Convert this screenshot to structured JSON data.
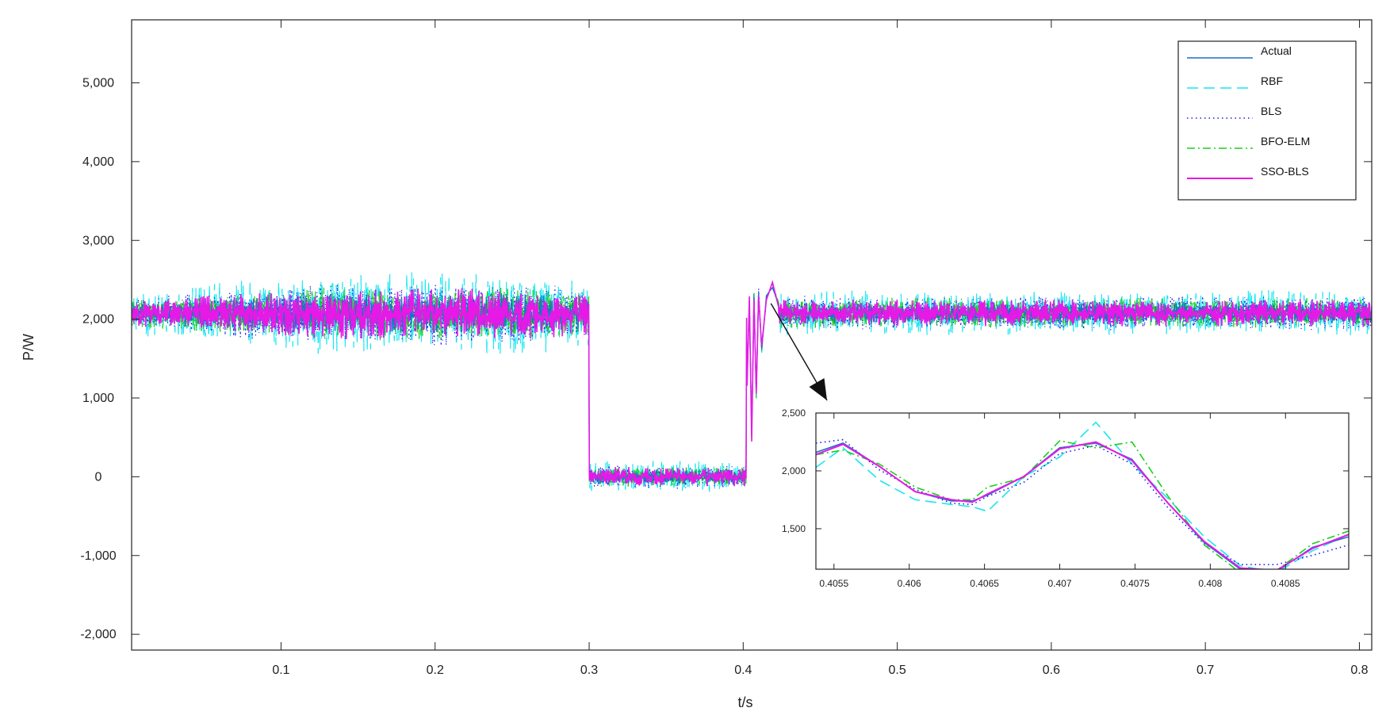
{
  "chart_data": {
    "type": "line",
    "title": "",
    "xlabel": "t/s",
    "ylabel": "P/W",
    "xlim": [
      0.003,
      0.808
    ],
    "ylim": [
      -2200,
      5800
    ],
    "xticks": [
      0.1,
      0.2,
      0.3,
      0.4,
      0.5,
      0.6,
      0.7,
      0.8
    ],
    "xtick_labels": [
      "0.1",
      "0.2",
      "0.3",
      "0.4",
      "0.5",
      "0.6",
      "0.7",
      "0.8"
    ],
    "yticks": [
      -2000,
      -1000,
      0,
      1000,
      2000,
      3000,
      4000,
      5000
    ],
    "ytick_labels": [
      "-2,000",
      "-1,000",
      "0",
      "1,000",
      "2,000",
      "3,000",
      "4,000",
      "5,000"
    ],
    "grid": false,
    "legend_position": "top-right",
    "profile": {
      "segments": [
        {
          "t_start": 0.003,
          "t_end": 0.3,
          "level": 2070
        },
        {
          "t_start": 0.3,
          "t_end": 0.402,
          "level": 0
        },
        {
          "t_start": 0.402,
          "t_end": 0.808,
          "level": 2080
        }
      ],
      "noise_amplitude": {
        "Actual": 110,
        "RBF": 230,
        "BLS": 170,
        "BFO-ELM": 150,
        "SSO-BLS": 140
      },
      "transient_points": [
        {
          "t": 0.4025,
          "value": 1200
        },
        {
          "t": 0.404,
          "value": 2250
        },
        {
          "t": 0.4055,
          "value": 500
        },
        {
          "t": 0.407,
          "value": 2300
        },
        {
          "t": 0.4085,
          "value": 1050
        },
        {
          "t": 0.41,
          "value": 2350
        },
        {
          "t": 0.412,
          "value": 1600
        },
        {
          "t": 0.415,
          "value": 2300
        },
        {
          "t": 0.419,
          "value": 2420
        },
        {
          "t": 0.423,
          "value": 2200
        }
      ]
    },
    "series": [
      {
        "name": "Actual",
        "color": "#1f6fc4",
        "dash": "solid"
      },
      {
        "name": "RBF",
        "color": "#19e6f0",
        "dash": "dashed"
      },
      {
        "name": "BLS",
        "color": "#1a1ae6",
        "dash": "dotted"
      },
      {
        "name": "BFO-ELM",
        "color": "#19d019",
        "dash": "dashdot"
      },
      {
        "name": "SSO-BLS",
        "color": "#e619e6",
        "dash": "solid"
      }
    ],
    "annotation": {
      "type": "arrow",
      "from": {
        "t": 0.418,
        "value": 2200
      },
      "to": "inset"
    },
    "inset": {
      "xlim": [
        0.40538,
        0.40892
      ],
      "ylim": [
        1150,
        2500
      ],
      "xticks": [
        0.4055,
        0.406,
        0.4065,
        0.407,
        0.4075,
        0.408,
        0.4085
      ],
      "xtick_labels": [
        "0.4055",
        "0.406",
        "0.4065",
        "0.407",
        "0.4075",
        "0.408",
        "0.4085"
      ],
      "yticks": [
        1500,
        2000,
        2500
      ],
      "ytick_labels": [
        "1,500",
        "2,000",
        "2,500"
      ],
      "x": [
        0.40538,
        0.40556,
        0.4058,
        0.40604,
        0.40628,
        0.40642,
        0.40652,
        0.40676,
        0.407,
        0.40724,
        0.40748,
        0.40772,
        0.40796,
        0.4082,
        0.40844,
        0.40868,
        0.40892
      ],
      "series": [
        {
          "name": "Actual",
          "values": [
            2160,
            2240,
            2040,
            1820,
            1740,
            1740,
            1790,
            1950,
            2200,
            2240,
            2100,
            1720,
            1380,
            1150,
            1130,
            1340,
            1430
          ]
        },
        {
          "name": "RBF",
          "values": [
            2030,
            2200,
            1920,
            1750,
            1710,
            1690,
            1650,
            1950,
            2120,
            2420,
            2060,
            1760,
            1430,
            1180,
            1120,
            1310,
            1450
          ]
        },
        {
          "name": "BLS",
          "values": [
            2240,
            2270,
            2010,
            1840,
            1720,
            1710,
            1780,
            1900,
            2150,
            2220,
            2060,
            1680,
            1370,
            1190,
            1190,
            1270,
            1360
          ]
        },
        {
          "name": "BFO-ELM",
          "values": [
            2140,
            2180,
            2060,
            1860,
            1750,
            1750,
            1860,
            1940,
            2260,
            2200,
            2250,
            1780,
            1360,
            1120,
            1140,
            1370,
            1480
          ]
        },
        {
          "name": "SSO-BLS",
          "values": [
            2140,
            2230,
            2040,
            1820,
            1750,
            1730,
            1800,
            1950,
            2190,
            2250,
            2090,
            1720,
            1390,
            1160,
            1140,
            1330,
            1450
          ]
        }
      ]
    }
  }
}
